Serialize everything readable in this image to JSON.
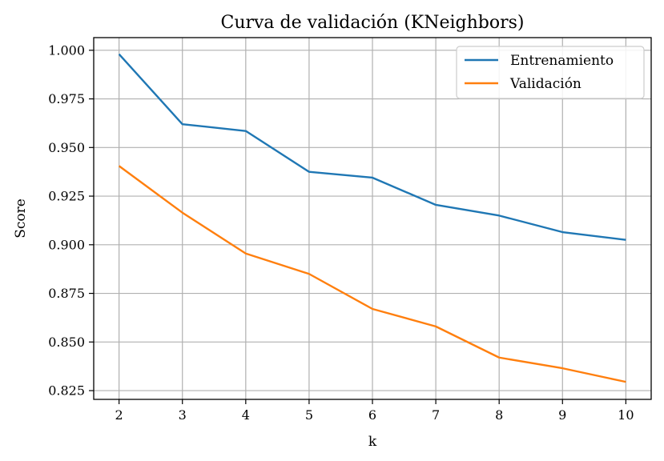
{
  "chart_data": {
    "type": "line",
    "title": "Curva de validación (KNeighbors)",
    "xlabel": "k",
    "ylabel": "Score",
    "x": [
      2,
      3,
      4,
      5,
      6,
      7,
      8,
      9,
      10
    ],
    "xticks": [
      2,
      3,
      4,
      5,
      6,
      7,
      8,
      9,
      10
    ],
    "xlim": [
      1.6,
      10.4
    ],
    "yticks": [
      0.825,
      0.85,
      0.875,
      0.9,
      0.925,
      0.95,
      0.975,
      1.0
    ],
    "ytick_labels": [
      "0.825",
      "0.850",
      "0.875",
      "0.900",
      "0.925",
      "0.950",
      "0.975",
      "1.000"
    ],
    "ylim": [
      0.8205,
      1.0065
    ],
    "grid": true,
    "legend": "top-right",
    "series": [
      {
        "name": "Entrenamiento",
        "color": "#1f77b4",
        "values": [
          0.998,
          0.962,
          0.9585,
          0.9375,
          0.9345,
          0.9205,
          0.915,
          0.9065,
          0.9025
        ]
      },
      {
        "name": "Validación",
        "color": "#ff7f0e",
        "values": [
          0.9405,
          0.9165,
          0.8955,
          0.885,
          0.867,
          0.858,
          0.842,
          0.8365,
          0.8295
        ]
      }
    ]
  }
}
